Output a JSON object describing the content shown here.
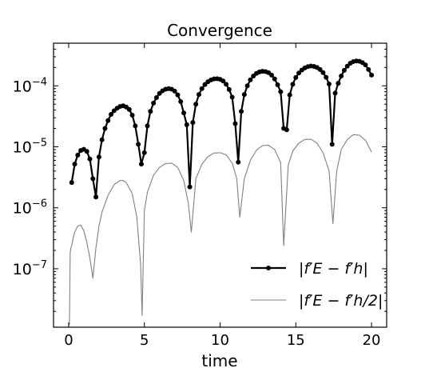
{
  "chart_data": {
    "type": "line",
    "title": "Convergence",
    "xlabel": "time",
    "ylabel": "",
    "yscale": "log",
    "xlim": [
      -1,
      21
    ],
    "ylim": [
      1.1e-08,
      0.0005
    ],
    "x_ticks": [
      {
        "value": 0,
        "label": "0"
      },
      {
        "value": 5,
        "label": "5"
      },
      {
        "value": 10,
        "label": "10"
      },
      {
        "value": 15,
        "label": "15"
      },
      {
        "value": 20,
        "label": "20"
      }
    ],
    "y_ticks": [
      {
        "value": 1e-07,
        "base": "10",
        "exp": "−7"
      },
      {
        "value": 1e-06,
        "base": "10",
        "exp": "−6"
      },
      {
        "value": 1e-05,
        "base": "10",
        "exp": "−5"
      },
      {
        "value": 0.0001,
        "base": "10",
        "exp": "−4"
      }
    ],
    "legend_position": "lower-right",
    "grid": false,
    "series": [
      {
        "name": "|f′E − f′h|",
        "color": "#000000",
        "marker": "circle",
        "line": "thick",
        "x": [
          0.2,
          0.4,
          0.6,
          0.8,
          1.0,
          1.2,
          1.4,
          1.6,
          1.8,
          2.0,
          2.2,
          2.4,
          2.6,
          2.8,
          3.0,
          3.2,
          3.4,
          3.6,
          3.8,
          4.0,
          4.2,
          4.4,
          4.6,
          4.8,
          5.0,
          5.2,
          5.4,
          5.6,
          5.8,
          6.0,
          6.2,
          6.4,
          6.6,
          6.8,
          7.0,
          7.2,
          7.4,
          7.6,
          7.8,
          8.0,
          8.2,
          8.4,
          8.6,
          8.8,
          9.0,
          9.2,
          9.4,
          9.6,
          9.8,
          10.0,
          10.2,
          10.4,
          10.6,
          10.8,
          11.0,
          11.2,
          11.4,
          11.6,
          11.8,
          12.0,
          12.2,
          12.4,
          12.6,
          12.8,
          13.0,
          13.2,
          13.4,
          13.6,
          13.8,
          14.0,
          14.2,
          14.4,
          14.6,
          14.8,
          15.0,
          15.2,
          15.4,
          15.6,
          15.8,
          16.0,
          16.2,
          16.4,
          16.6,
          16.8,
          17.0,
          17.2,
          17.4,
          17.6,
          17.8,
          18.0,
          18.2,
          18.4,
          18.6,
          18.8,
          19.0,
          19.2,
          19.4,
          19.6,
          19.8,
          20.0
        ],
        "y": [
          2.6e-06,
          5.2e-06,
          7.3e-06,
          8.7e-06,
          9.1e-06,
          8.4e-06,
          6.3e-06,
          3e-06,
          1.5e-06,
          6.8e-06,
          1.3e-05,
          2e-05,
          2.7e-05,
          3.4e-05,
          3.9e-05,
          4.3e-05,
          4.6e-05,
          4.7e-05,
          4.5e-05,
          4.1e-05,
          3.3e-05,
          2.2e-05,
          1.1e-05,
          5.2e-06,
          8e-06,
          2.2e-05,
          3.8e-05,
          5.2e-05,
          6.4e-05,
          7.5e-05,
          8.3e-05,
          8.8e-05,
          9e-05,
          8.8e-05,
          8.2e-05,
          7.1e-05,
          5.5e-05,
          3.6e-05,
          2.3e-05,
          2.2e-06,
          2.5e-05,
          5e-05,
          7.2e-05,
          9e-05,
          0.000105,
          0.000117,
          0.000125,
          0.00013,
          0.000131,
          0.000128,
          0.00012,
          0.000106,
          8.7e-05,
          6.5e-05,
          2.4e-05,
          5.6e-06,
          3.8e-05,
          7.2e-05,
          0.0001,
          0.000125,
          0.000145,
          0.00016,
          0.000169,
          0.000173,
          0.000171,
          0.000164,
          0.00015,
          0.00013,
          0.000104,
          8e-05,
          2e-05,
          1.9e-05,
          7.1e-05,
          0.000106,
          0.000137,
          0.000162,
          0.000182,
          0.000197,
          0.000207,
          0.000211,
          0.000208,
          0.0002,
          0.000185,
          0.000165,
          0.000138,
          0.000107,
          1.1e-05,
          7.6e-05,
          0.00011,
          0.000145,
          0.00018,
          0.00021,
          0.000235,
          0.00025,
          0.000255,
          0.000252,
          0.00024,
          0.00022,
          0.000185,
          0.00015
        ]
      },
      {
        "name": "|f′E − f′h/2|",
        "color": "#808080",
        "marker": "none",
        "line": "thin",
        "x": [
          0.05,
          0.1,
          0.15,
          0.2,
          0.3,
          0.4,
          0.6,
          0.8,
          1.0,
          1.2,
          1.4,
          1.6,
          1.8,
          2.0,
          2.2,
          2.6,
          3.0,
          3.4,
          3.6,
          3.8,
          4.2,
          4.5,
          4.75,
          4.85,
          5.0,
          5.2,
          5.6,
          6.0,
          6.4,
          6.8,
          7.2,
          7.6,
          7.9,
          8.1,
          8.4,
          8.8,
          9.2,
          9.6,
          10.0,
          10.4,
          10.8,
          11.1,
          11.3,
          11.6,
          12.0,
          12.4,
          12.8,
          13.2,
          13.6,
          14.0,
          14.2,
          14.5,
          14.8,
          15.2,
          15.6,
          16.0,
          16.4,
          16.8,
          17.2,
          17.45,
          17.7,
          18.0,
          18.4,
          18.8,
          19.2,
          19.6,
          20.0
        ],
        "y": [
          1.2e-08,
          1.8e-07,
          2.2e-07,
          2.4e-07,
          3.2e-07,
          4e-07,
          5e-07,
          5.2e-07,
          4.2e-07,
          2.7e-07,
          1.5e-07,
          7e-08,
          2.2e-07,
          5e-07,
          8.5e-07,
          1.6e-06,
          2.4e-06,
          2.8e-06,
          2.8e-06,
          2.6e-06,
          1.7e-06,
          7e-07,
          1.2e-07,
          1.7e-08,
          9e-07,
          1.8e-06,
          3.4e-06,
          4.6e-06,
          5.3e-06,
          5.4e-06,
          4.6e-06,
          2.8e-06,
          1.2e-06,
          4e-07,
          3e-06,
          5.2e-06,
          6.9e-06,
          7.9e-06,
          8e-06,
          7.4e-06,
          5.4e-06,
          3e-06,
          7e-07,
          3e-06,
          6e-06,
          8.8e-06,
          1.05e-05,
          1.06e-05,
          9e-06,
          5.5e-06,
          2.4e-07,
          5e-06,
          8.5e-06,
          1.15e-05,
          1.32e-05,
          1.33e-05,
          1.15e-05,
          8e-06,
          4e-06,
          5.5e-07,
          4e-06,
          9e-06,
          1.32e-05,
          1.58e-05,
          1.55e-05,
          1.28e-05,
          8.2e-06
        ]
      }
    ]
  }
}
